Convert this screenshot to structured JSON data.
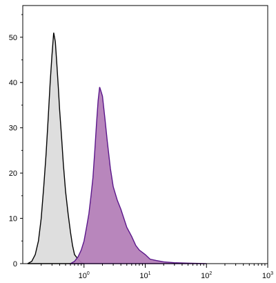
{
  "chart_data": {
    "type": "area",
    "title": "",
    "xlabel": "",
    "ylabel": "",
    "x_scale": "log",
    "xlim": [
      0.1,
      1000
    ],
    "ylim": [
      0,
      57
    ],
    "x_ticks": [
      {
        "base": "10",
        "exp": "0",
        "value": 1
      },
      {
        "base": "10",
        "exp": "1",
        "value": 10
      },
      {
        "base": "10",
        "exp": "2",
        "value": 100
      },
      {
        "base": "10",
        "exp": "3",
        "value": 1000
      }
    ],
    "y_ticks": [
      "0",
      "10",
      "20",
      "30",
      "40",
      "50"
    ],
    "grid": false,
    "legend": "none",
    "series": [
      {
        "fill": "#dcdcdc",
        "stroke": "#000000",
        "x": [
          0.12,
          0.14,
          0.16,
          0.18,
          0.2,
          0.22,
          0.24,
          0.26,
          0.28,
          0.3,
          0.32,
          0.34,
          0.36,
          0.38,
          0.4,
          0.43,
          0.46,
          0.5,
          0.55,
          0.6,
          0.65,
          0.7,
          0.8,
          0.9,
          1.0
        ],
        "y": [
          0,
          0.5,
          2,
          5,
          10,
          17,
          24,
          32,
          40,
          46,
          51,
          49,
          44,
          39,
          34,
          28,
          22,
          16,
          11,
          7,
          4,
          2,
          1,
          0.3,
          0
        ]
      },
      {
        "fill": "#b47fb8",
        "stroke": "#5a168a",
        "x": [
          0.6,
          0.7,
          0.8,
          0.9,
          1.0,
          1.1,
          1.2,
          1.3,
          1.4,
          1.5,
          1.6,
          1.7,
          1.8,
          1.9,
          2.0,
          2.2,
          2.4,
          2.7,
          3.0,
          3.5,
          4.0,
          5.0,
          6.0,
          7.0,
          8.0,
          10,
          12,
          15,
          20,
          30,
          50,
          100
        ],
        "y": [
          0,
          0.5,
          1.5,
          3,
          5,
          8,
          11,
          15,
          19,
          25,
          31,
          36,
          39,
          38,
          37,
          32,
          27,
          21,
          17,
          14,
          12,
          8,
          6,
          4,
          3,
          2,
          1,
          0.7,
          0.4,
          0.2,
          0.1,
          0
        ]
      }
    ]
  }
}
